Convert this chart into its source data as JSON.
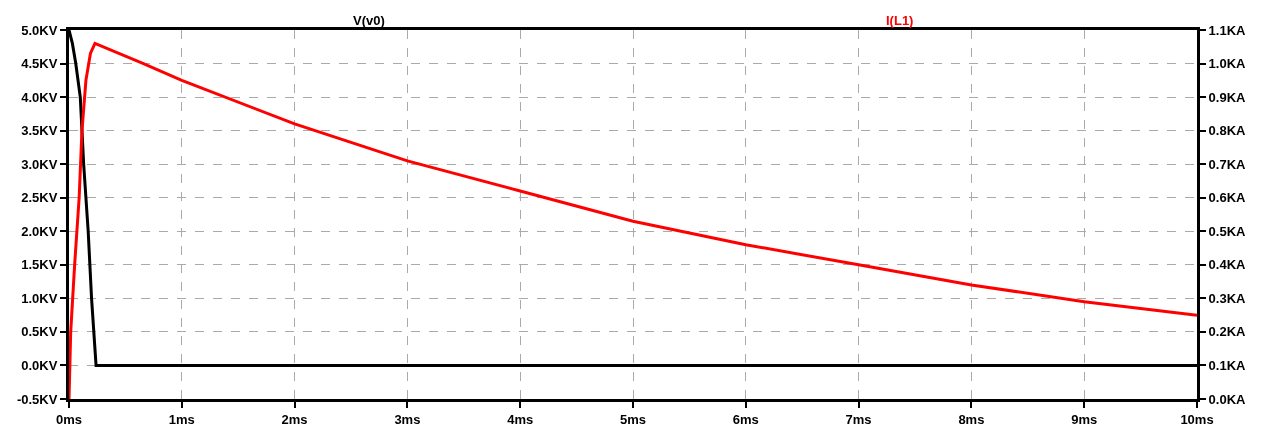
{
  "chart_data": {
    "type": "line",
    "legend": "top",
    "grid": true,
    "line_style": "solid",
    "marker": "none",
    "xlim": [
      0,
      10
    ],
    "xticks": [
      {
        "value": 0,
        "label": "0ms"
      },
      {
        "value": 1,
        "label": "1ms"
      },
      {
        "value": 2,
        "label": "2ms"
      },
      {
        "value": 3,
        "label": "3ms"
      },
      {
        "value": 4,
        "label": "4ms"
      },
      {
        "value": 5,
        "label": "5ms"
      },
      {
        "value": 6,
        "label": "6ms"
      },
      {
        "value": 7,
        "label": "7ms"
      },
      {
        "value": 8,
        "label": "8ms"
      },
      {
        "value": 9,
        "label": "9ms"
      },
      {
        "value": 10,
        "label": "10ms"
      }
    ],
    "ylim": [
      -0.5,
      5.0
    ],
    "yticks": [
      {
        "value": -0.5,
        "label": "-0.5KV"
      },
      {
        "value": 0,
        "label": "0.0KV"
      },
      {
        "value": 0.5,
        "label": "0.5KV"
      },
      {
        "value": 1,
        "label": "1.0KV"
      },
      {
        "value": 1.5,
        "label": "1.5KV"
      },
      {
        "value": 2,
        "label": "2.0KV"
      },
      {
        "value": 2.5,
        "label": "2.5KV"
      },
      {
        "value": 3,
        "label": "3.0KV"
      },
      {
        "value": 3.5,
        "label": "3.5KV"
      },
      {
        "value": 4,
        "label": "4.0KV"
      },
      {
        "value": 4.5,
        "label": "4.5KV"
      },
      {
        "value": 5,
        "label": "5.0KV"
      }
    ],
    "y2lim": [
      0.0,
      1.1
    ],
    "y2ticks": [
      {
        "value": 0,
        "label": "0.0KA"
      },
      {
        "value": 0.1,
        "label": "0.1KA"
      },
      {
        "value": 0.2,
        "label": "0.2KA"
      },
      {
        "value": 0.3,
        "label": "0.3KA"
      },
      {
        "value": 0.4,
        "label": "0.4KA"
      },
      {
        "value": 0.5,
        "label": "0.5KA"
      },
      {
        "value": 0.6,
        "label": "0.6KA"
      },
      {
        "value": 0.7,
        "label": "0.7KA"
      },
      {
        "value": 0.8,
        "label": "0.8KA"
      },
      {
        "value": 0.9,
        "label": "0.9KA"
      },
      {
        "value": 1.0,
        "label": "1.0KA"
      },
      {
        "value": 1.1,
        "label": "1.1KA"
      }
    ],
    "series": [
      {
        "name": "V(v0)",
        "color": "#000000",
        "x": [
          0,
          0.03,
          0.06,
          0.1,
          0.13,
          0.17,
          0.2,
          0.24,
          10
        ],
        "values": [
          5.0,
          4.8,
          4.5,
          4.0,
          3.0,
          2.0,
          1.0,
          0.0,
          0.0
        ]
      },
      {
        "name": "I(L1)",
        "color": "#ff0000",
        "axis": "y2",
        "x": [
          0,
          0.015,
          0.05,
          0.09,
          0.115,
          0.15,
          0.19,
          0.23,
          0.66,
          1,
          2,
          3,
          4,
          5,
          6,
          7,
          8,
          9,
          10
        ],
        "values": [
          0.0,
          0.2,
          0.4,
          0.6,
          0.8,
          0.95,
          1.03,
          1.06,
          1.0,
          0.95,
          0.82,
          0.71,
          0.62,
          0.53,
          0.46,
          0.4,
          0.34,
          0.29,
          0.25
        ]
      }
    ]
  }
}
